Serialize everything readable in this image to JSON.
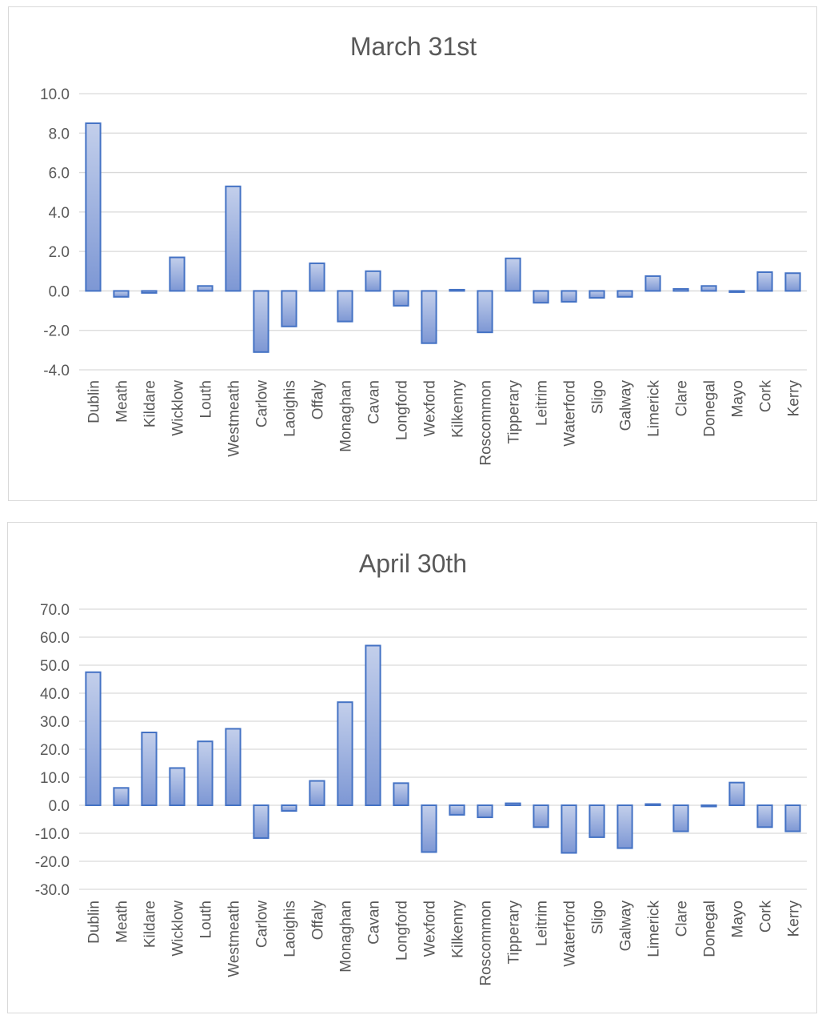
{
  "colors": {
    "bar_stroke": "#4472c4",
    "bar_fill_top": "#c3cfeb",
    "bar_fill_bottom": "#7d97d4",
    "gridline": "#d9d9d9",
    "text": "#595959"
  },
  "chart_data": [
    {
      "type": "bar",
      "title": "March 31st",
      "xlabel": "",
      "ylabel": "",
      "ylim": [
        -4,
        10
      ],
      "yticks": [
        "10.0",
        "8.0",
        "6.0",
        "4.0",
        "2.0",
        "0.0",
        "-2.0",
        "-4.0"
      ],
      "grid": true,
      "legend": "none",
      "categories": [
        "Dublin",
        "Meath",
        "Kildare",
        "Wicklow",
        "Louth",
        "Westmeath",
        "Carlow",
        "Laoighis",
        "Offaly",
        "Monaghan",
        "Cavan",
        "Longford",
        "Wexford",
        "Kilkenny",
        "Roscommon",
        "Tipperary",
        "Leitrim",
        "Waterford",
        "Sligo",
        "Galway",
        "Limerick",
        "Clare",
        "Donegal",
        "Mayo",
        "Cork",
        "Kerry"
      ],
      "values": [
        8.5,
        -0.3,
        -0.1,
        1.7,
        0.25,
        5.3,
        -3.1,
        -1.8,
        1.4,
        -1.55,
        1.0,
        -0.75,
        -2.65,
        0.05,
        -2.1,
        1.65,
        -0.6,
        -0.55,
        -0.35,
        -0.3,
        0.75,
        0.1,
        0.25,
        -0.05,
        0.95,
        0.9
      ]
    },
    {
      "type": "bar",
      "title": "April 30th",
      "xlabel": "",
      "ylabel": "",
      "ylim": [
        -30,
        70
      ],
      "yticks": [
        "70.0",
        "60.0",
        "50.0",
        "40.0",
        "30.0",
        "20.0",
        "10.0",
        "0.0",
        "-10.0",
        "-20.0",
        "-30.0"
      ],
      "grid": true,
      "legend": "none",
      "categories": [
        "Dublin",
        "Meath",
        "Kildare",
        "Wicklow",
        "Louth",
        "Westmeath",
        "Carlow",
        "Laoighis",
        "Offaly",
        "Monaghan",
        "Cavan",
        "Longford",
        "Wexford",
        "Kilkenny",
        "Roscommon",
        "Tipperary",
        "Leitrim",
        "Waterford",
        "Sligo",
        "Galway",
        "Limerick",
        "Clare",
        "Donegal",
        "Mayo",
        "Cork",
        "Kerry"
      ],
      "values": [
        47.5,
        6.2,
        26.0,
        13.3,
        22.8,
        27.3,
        -11.7,
        -2.0,
        8.7,
        36.8,
        57.0,
        7.9,
        -16.7,
        -3.4,
        -4.3,
        0.7,
        -7.8,
        -17.0,
        -11.4,
        -15.3,
        0.3,
        -9.3,
        -0.4,
        8.1,
        -7.8,
        -9.3
      ]
    }
  ]
}
